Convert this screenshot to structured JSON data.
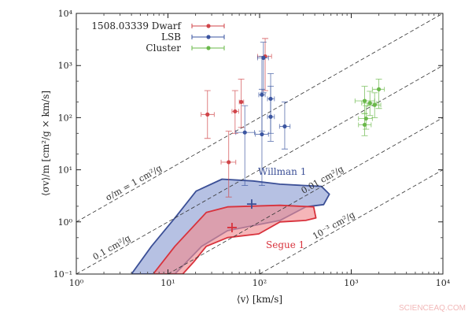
{
  "chart_data": {
    "type": "scatter",
    "xlabel": "⟨v⟩ [km/s]",
    "ylabel": "⟨σv⟩/m [cm²/g × km/s]",
    "xscale": "log",
    "yscale": "log",
    "xlim": [
      1,
      10000
    ],
    "ylim": [
      0.1,
      10000
    ],
    "xticks": [
      {
        "v": 1,
        "label": "10⁰"
      },
      {
        "v": 10,
        "label": "10¹"
      },
      {
        "v": 100,
        "label": "10²"
      },
      {
        "v": 1000,
        "label": "10³"
      },
      {
        "v": 10000,
        "label": "10⁴"
      }
    ],
    "yticks": [
      {
        "v": 0.1,
        "label": "10⁻¹"
      },
      {
        "v": 1,
        "label": "10⁰"
      },
      {
        "v": 10,
        "label": "10¹"
      },
      {
        "v": 100,
        "label": "10²"
      },
      {
        "v": 1000,
        "label": "10³"
      },
      {
        "v": 10000,
        "label": "10⁴"
      }
    ],
    "grid": false,
    "legend_placement": "top-left",
    "series": [
      {
        "name": "1508.03339 Dwarf",
        "color": "#d0454a",
        "points": [
          {
            "x": 27,
            "y": 115,
            "xerr": [
              23,
              32
            ],
            "yerr": [
              40,
              330
            ]
          },
          {
            "x": 54,
            "y": 132,
            "xerr": [
              50,
              59
            ],
            "yerr": [
              50,
              330
            ]
          },
          {
            "x": 63,
            "y": 200,
            "xerr": [
              60,
              67
            ],
            "yerr": [
              65,
              550
            ]
          },
          {
            "x": 115,
            "y": 1500,
            "xerr": [
              95,
              135
            ],
            "yerr": [
              330,
              3300
            ]
          },
          {
            "x": 46,
            "y": 14,
            "xerr": [
              38,
              55
            ],
            "yerr": [
              3,
              55
            ]
          }
        ]
      },
      {
        "name": "LSB",
        "color": "#3b55a0",
        "points": [
          {
            "x": 110,
            "y": 1400,
            "xerr": [
              95,
              125
            ],
            "yerr": [
              300,
              2800
            ]
          },
          {
            "x": 106,
            "y": 275,
            "xerr": [
              98,
              115
            ],
            "yerr": [
              55,
              1500
            ]
          },
          {
            "x": 132,
            "y": 230,
            "xerr": [
              122,
              145
            ],
            "yerr": [
              50,
              700
            ]
          },
          {
            "x": 132,
            "y": 104,
            "xerr": [
              122,
              145
            ],
            "yerr": [
              35,
              400
            ]
          },
          {
            "x": 69,
            "y": 52,
            "xerr": [
              55,
              88
            ],
            "yerr": [
              5,
              170
            ]
          },
          {
            "x": 106,
            "y": 48,
            "xerr": [
              90,
              125
            ],
            "yerr": [
              5,
              350
            ]
          },
          {
            "x": 188,
            "y": 68,
            "xerr": [
              165,
              215
            ],
            "yerr": [
              25,
              200
            ]
          }
        ]
      },
      {
        "name": "Cluster",
        "color": "#6ab84a",
        "points": [
          {
            "x": 2000,
            "y": 350,
            "xerr": [
              1700,
              2300
            ],
            "yerr": [
              150,
              550
            ]
          },
          {
            "x": 1400,
            "y": 210,
            "xerr": [
              1100,
              1800
            ],
            "yerr": [
              120,
              400
            ]
          },
          {
            "x": 1600,
            "y": 190,
            "xerr": [
              1300,
              1900
            ],
            "yerr": [
              110,
              320
            ]
          },
          {
            "x": 1800,
            "y": 175,
            "xerr": [
              1500,
              2100
            ],
            "yerr": [
              100,
              300
            ]
          },
          {
            "x": 1450,
            "y": 96,
            "xerr": [
              1200,
              1700
            ],
            "yerr": [
              60,
              170
            ]
          },
          {
            "x": 1400,
            "y": 73,
            "xerr": [
              1200,
              1650
            ],
            "yerr": [
              45,
              120
            ]
          }
        ]
      }
    ],
    "regions": [
      {
        "name": "Willman 1",
        "fill": "#8f9fd4",
        "stroke": "#3b4f96",
        "best_fit": {
          "x": 82,
          "y": 2.2
        },
        "outline": [
          [
            4.0,
            0.1
          ],
          [
            6.6,
            0.34
          ],
          [
            11.9,
            1.19
          ],
          [
            20.3,
            3.9
          ],
          [
            38.9,
            6.6
          ],
          [
            85,
            6.1
          ],
          [
            167,
            5.3
          ],
          [
            473,
            4.8
          ],
          [
            577,
            3.4
          ],
          [
            500,
            2.15
          ],
          [
            319,
            1.94
          ],
          [
            167,
            1.07
          ],
          [
            44.7,
            0.68
          ],
          [
            23.3,
            0.34
          ],
          [
            11.9,
            0.1
          ]
        ]
      },
      {
        "name": "Segue 1",
        "fill": "#f08d92",
        "stroke": "#d8323c",
        "best_fit": {
          "x": 50,
          "y": 0.78
        },
        "outline": [
          [
            6.9,
            0.1
          ],
          [
            11.9,
            0.34
          ],
          [
            26.2,
            1.52
          ],
          [
            44.7,
            1.94
          ],
          [
            167,
            2.08
          ],
          [
            389,
            1.94
          ],
          [
            412,
            1.19
          ],
          [
            319,
            1.07
          ],
          [
            167,
            1.0
          ],
          [
            98,
            0.59
          ],
          [
            44.7,
            0.5
          ],
          [
            26.2,
            0.34
          ],
          [
            19.1,
            0.17
          ],
          [
            14.5,
            0.1
          ]
        ]
      }
    ],
    "reference_lines": [
      {
        "sigma_over_m": 1,
        "label": "σ/m = 1 cm²/g"
      },
      {
        "sigma_over_m": 0.1,
        "label": "0.1 cm²/g"
      },
      {
        "sigma_over_m": 0.01,
        "label": "0.01 cm²/g"
      },
      {
        "sigma_over_m": 0.001,
        "label": "10⁻³ cm²/g"
      }
    ]
  },
  "watermark": "SCIENCEAQ.COM"
}
